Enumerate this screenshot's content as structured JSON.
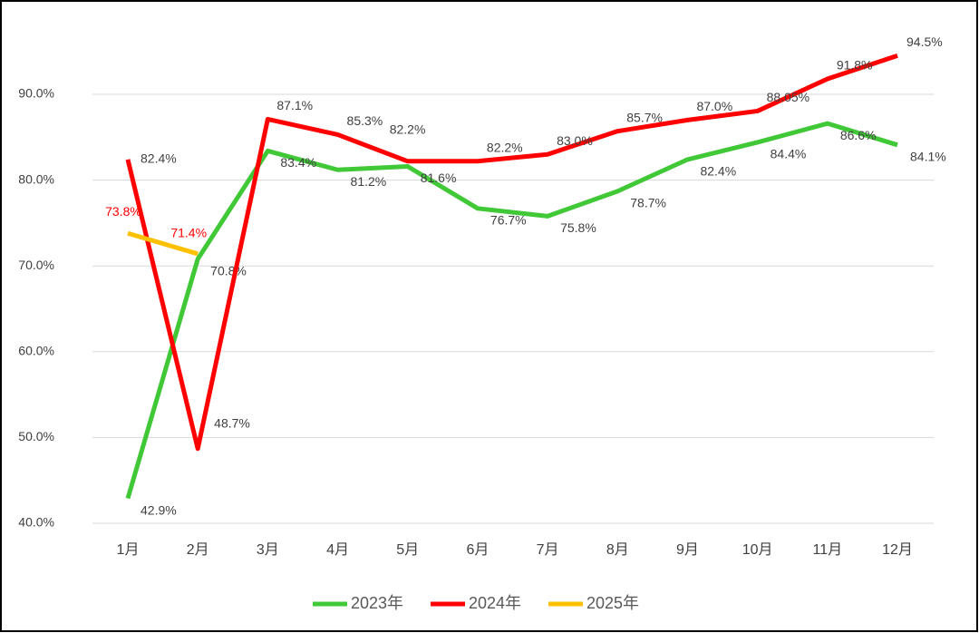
{
  "chart_data": {
    "type": "line",
    "categories": [
      "1月",
      "2月",
      "3月",
      "4月",
      "5月",
      "6月",
      "7月",
      "8月",
      "9月",
      "10月",
      "11月",
      "12月"
    ],
    "series": [
      {
        "name": "2023年",
        "color": "#40c837",
        "values": [
          42.9,
          70.8,
          83.4,
          81.2,
          81.6,
          76.7,
          75.8,
          78.7,
          82.4,
          84.4,
          86.6,
          84.1
        ],
        "value_labels": [
          "42.9%",
          "70.8%",
          "83.4%",
          "81.2%",
          "81.6%",
          "76.7%",
          "75.8%",
          "78.7%",
          "82.4%",
          "84.4%",
          "86.6%",
          "84.1%"
        ]
      },
      {
        "name": "2024年",
        "color": "#ff0000",
        "values": [
          82.4,
          48.7,
          87.1,
          85.3,
          82.2,
          82.2,
          83.0,
          85.7,
          87.0,
          88.05,
          91.8,
          94.5
        ],
        "value_labels": [
          "82.4%",
          "48.7%",
          "87.1%",
          "85.3%",
          "82.2%",
          "82.2%",
          "83.0%",
          "85.7%",
          "87.0%",
          "88.05%",
          "91.8%",
          "94.5%"
        ]
      },
      {
        "name": "2025年",
        "color": "#ffc000",
        "values": [
          73.8,
          71.4,
          null,
          null,
          null,
          null,
          null,
          null,
          null,
          null,
          null,
          null
        ],
        "value_labels": [
          "73.8%",
          "71.4%",
          null,
          null,
          null,
          null,
          null,
          null,
          null,
          null,
          null,
          null
        ]
      }
    ],
    "ylim": [
      40,
      97
    ],
    "yticks": [
      {
        "value": 40,
        "label": "40.0%"
      },
      {
        "value": 50,
        "label": "50.0%"
      },
      {
        "value": 60,
        "label": "60.0%"
      },
      {
        "value": 70,
        "label": "70.0%"
      },
      {
        "value": 80,
        "label": "80.0%"
      },
      {
        "value": 90,
        "label": "90.0%"
      }
    ],
    "grid": true,
    "legend": "bottom"
  }
}
